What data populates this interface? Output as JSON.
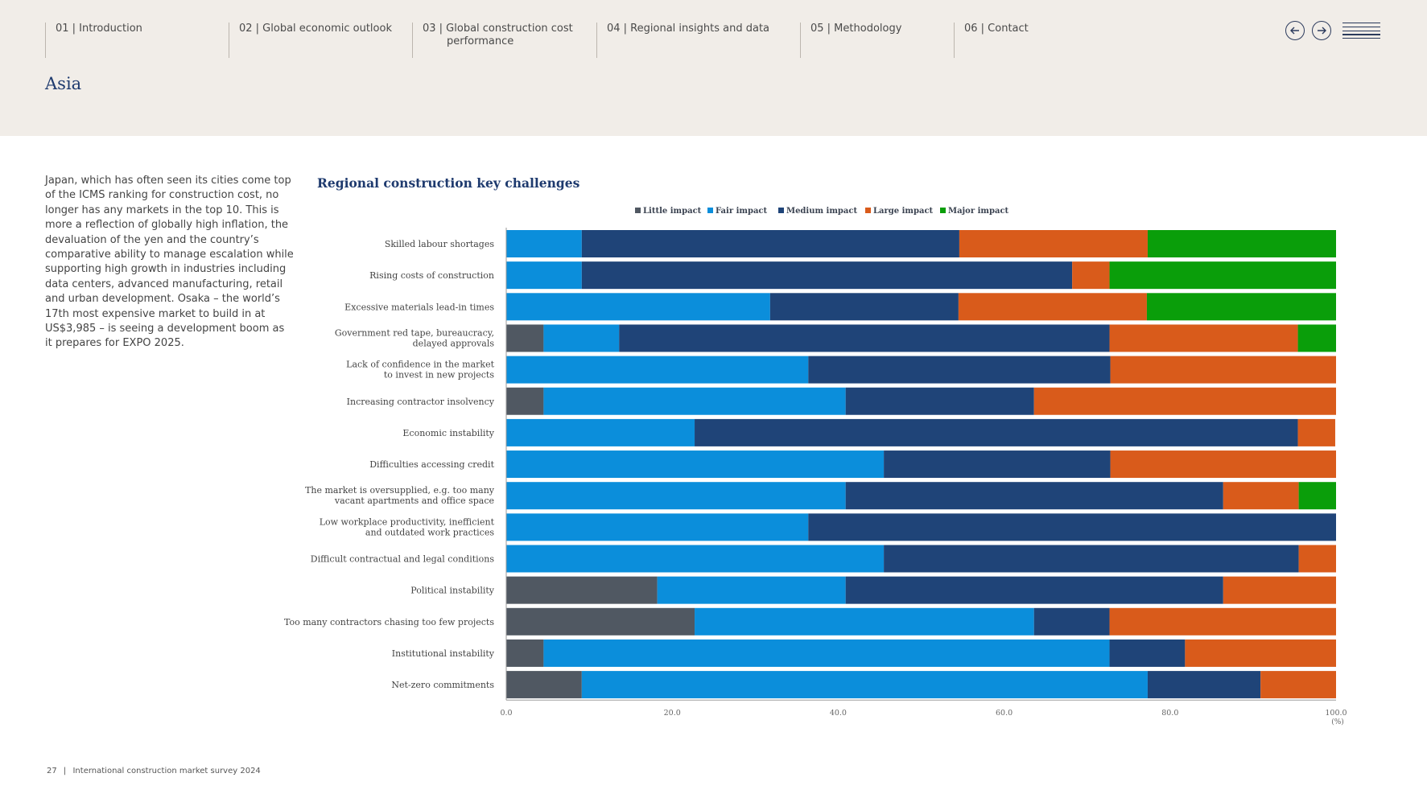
{
  "nav": {
    "items": [
      {
        "label": "01 | Introduction"
      },
      {
        "label": "02 | Global economic outlook"
      },
      {
        "label": "03 | Global construction cost",
        "label2": "performance"
      },
      {
        "label": "04 | Regional insights and data"
      },
      {
        "label": "05 | Methodology"
      },
      {
        "label": "06 | Contact"
      }
    ]
  },
  "page": {
    "title": "Asia",
    "body": "Japan, which has often seen its cities come top of the ICMS ranking for construction cost, no longer has any markets in the top 10. This is more a reflection of globally high inflation, the devaluation of the yen and the country’s comparative ability to manage escalation while supporting high growth in industries including data centers, advanced manufacturing, retail and urban development. Osaka – the world’s 17th most expensive market to build in at US$3,985 – is seeing a development boom as it prepares for EXPO 2025."
  },
  "footer": {
    "page_number": "27",
    "separator": "|",
    "publication": "International construction market survey 2024"
  },
  "colors": {
    "little": "#505862",
    "fair": "#0b8edb",
    "medium": "#1f4478",
    "large": "#d95b1b",
    "major": "#0a9e0a",
    "navy": "#1e3a6e"
  },
  "chart_data": {
    "type": "bar",
    "orientation": "horizontal",
    "stacked": true,
    "title": "Regional construction key challenges",
    "xlabel": "",
    "x_unit": "(%)",
    "xlim": [
      0,
      100
    ],
    "x_ticks": [
      "0.0",
      "20.0",
      "40.0",
      "60.0",
      "80.0",
      "100.0"
    ],
    "legend_position": "top-center",
    "categories": [
      [
        "Skilled labour shortages"
      ],
      [
        "Rising costs of construction"
      ],
      [
        "Excessive materials lead-in times"
      ],
      [
        "Government red tape, bureaucracy,",
        "delayed approvals"
      ],
      [
        "Lack of confidence in the market",
        "to invest in new projects"
      ],
      [
        "Increasing contractor insolvency"
      ],
      [
        "Economic instability"
      ],
      [
        "Difficulties accessing credit"
      ],
      [
        "The market is oversupplied, e.g. too many",
        "vacant apartments and office space"
      ],
      [
        "Low workplace productivity, inefficient",
        "and outdated work practices"
      ],
      [
        "Difficult contractual and legal conditions"
      ],
      [
        "Political instability"
      ],
      [
        "Too many contractors chasing too few projects"
      ],
      [
        "Institutional instability"
      ],
      [
        "Net-zero commitments"
      ]
    ],
    "series": [
      {
        "name": "Little impact",
        "key": "little",
        "values": [
          0,
          0,
          0,
          4.5,
          0,
          4.5,
          0,
          0,
          0,
          0,
          0,
          18.2,
          22.7,
          4.5,
          9.1
        ]
      },
      {
        "name": "Fair impact",
        "key": "fair",
        "values": [
          9.1,
          9.1,
          31.8,
          9.1,
          36.4,
          36.4,
          22.7,
          45.5,
          40.9,
          36.4,
          45.5,
          22.7,
          40.9,
          68.2,
          68.2
        ]
      },
      {
        "name": "Medium impact",
        "key": "medium",
        "values": [
          45.5,
          59.1,
          22.7,
          59.1,
          36.4,
          22.7,
          72.7,
          27.3,
          45.5,
          63.6,
          50.0,
          45.5,
          9.1,
          9.1,
          13.6
        ]
      },
      {
        "name": "Large impact",
        "key": "large",
        "values": [
          22.7,
          4.5,
          22.7,
          22.7,
          27.2,
          36.4,
          4.5,
          27.2,
          9.1,
          0,
          4.5,
          13.6,
          27.3,
          18.2,
          9.1
        ]
      },
      {
        "name": "Major impact",
        "key": "major",
        "values": [
          22.7,
          27.3,
          22.8,
          4.6,
          0,
          0,
          0,
          0,
          4.5,
          0,
          0,
          0,
          0,
          0,
          0
        ]
      }
    ]
  }
}
